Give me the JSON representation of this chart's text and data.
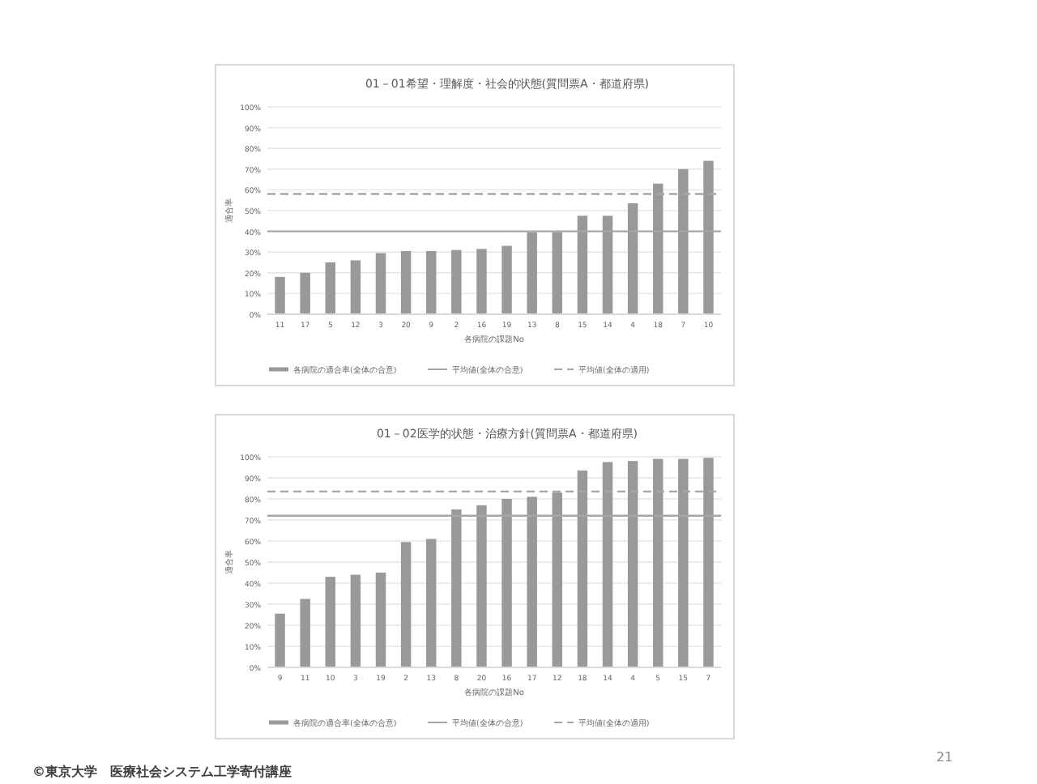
{
  "chart_data": [
    {
      "type": "bar",
      "title": "01－01希望・理解度・社会的状態(質問票A・都道府県)",
      "xlabel": "各病院の課題No",
      "ylabel": "適合率",
      "categories": [
        "11",
        "17",
        "5",
        "12",
        "3",
        "20",
        "9",
        "2",
        "16",
        "19",
        "13",
        "8",
        "15",
        "14",
        "4",
        "18",
        "7",
        "10"
      ],
      "series": [
        {
          "name": "各病院の適合率(全体の合意)",
          "color": "#999999",
          "values": [
            18,
            20,
            25,
            26,
            29.5,
            30.5,
            30.5,
            31,
            31.5,
            33,
            39.5,
            39.5,
            47.5,
            47.5,
            53.5,
            63,
            70,
            74
          ]
        }
      ],
      "ylim": [
        0,
        100
      ],
      "yticks": [
        {
          "value": 0,
          "label": "0%"
        },
        {
          "value": 10,
          "label": "10%"
        },
        {
          "value": 20,
          "label": "20%"
        },
        {
          "value": 30,
          "label": "30%"
        },
        {
          "value": 40,
          "label": "40%"
        },
        {
          "value": 50,
          "label": "50%"
        },
        {
          "value": 60,
          "label": "60%"
        },
        {
          "value": 70,
          "label": "70%"
        },
        {
          "value": 80,
          "label": "80%"
        },
        {
          "value": 90,
          "label": "90%"
        },
        {
          "value": 100,
          "label": "100%"
        }
      ],
      "ref_lines": [
        {
          "axis": "y",
          "value": 40,
          "label": "平均値(全体の合意)",
          "color": "#a6a6a6",
          "line_style": "solid"
        },
        {
          "axis": "y",
          "value": 58,
          "label": "平均値(全体の適用)",
          "color": "#a6a6a6",
          "line_style": "dashed"
        }
      ],
      "grid": "y",
      "legend": "bottom"
    },
    {
      "type": "bar",
      "title": "01－02医学的状態・治療方針(質問票A・都道府県)",
      "xlabel": "各病院の課題No",
      "ylabel": "適合率",
      "categories": [
        "9",
        "11",
        "10",
        "3",
        "19",
        "2",
        "13",
        "8",
        "20",
        "16",
        "17",
        "12",
        "18",
        "14",
        "4",
        "5",
        "15",
        "7"
      ],
      "series": [
        {
          "name": "各病院の適合率(全体の合意)",
          "color": "#999999",
          "values": [
            25.5,
            32.5,
            43,
            44,
            45,
            59.5,
            61,
            75,
            77,
            80,
            81,
            83,
            93.5,
            97.5,
            98,
            99,
            99,
            99.5
          ]
        }
      ],
      "ylim": [
        0,
        100
      ],
      "yticks": [
        {
          "value": 0,
          "label": "0%"
        },
        {
          "value": 10,
          "label": "10%"
        },
        {
          "value": 20,
          "label": "20%"
        },
        {
          "value": 30,
          "label": "30%"
        },
        {
          "value": 40,
          "label": "40%"
        },
        {
          "value": 50,
          "label": "50%"
        },
        {
          "value": 60,
          "label": "60%"
        },
        {
          "value": 70,
          "label": "70%"
        },
        {
          "value": 80,
          "label": "80%"
        },
        {
          "value": 90,
          "label": "90%"
        },
        {
          "value": 100,
          "label": "100%"
        }
      ],
      "ref_lines": [
        {
          "axis": "y",
          "value": 72,
          "label": "平均値(全体の合意)",
          "color": "#a6a6a6",
          "line_style": "solid"
        },
        {
          "axis": "y",
          "value": 83.5,
          "label": "平均値(全体の適用)",
          "color": "#a6a6a6",
          "line_style": "dashed"
        }
      ],
      "grid": "y",
      "legend": "bottom",
      "annotations": [
        "21",
        "©東京大学　医療社会システム工学寄付講座"
      ]
    }
  ]
}
